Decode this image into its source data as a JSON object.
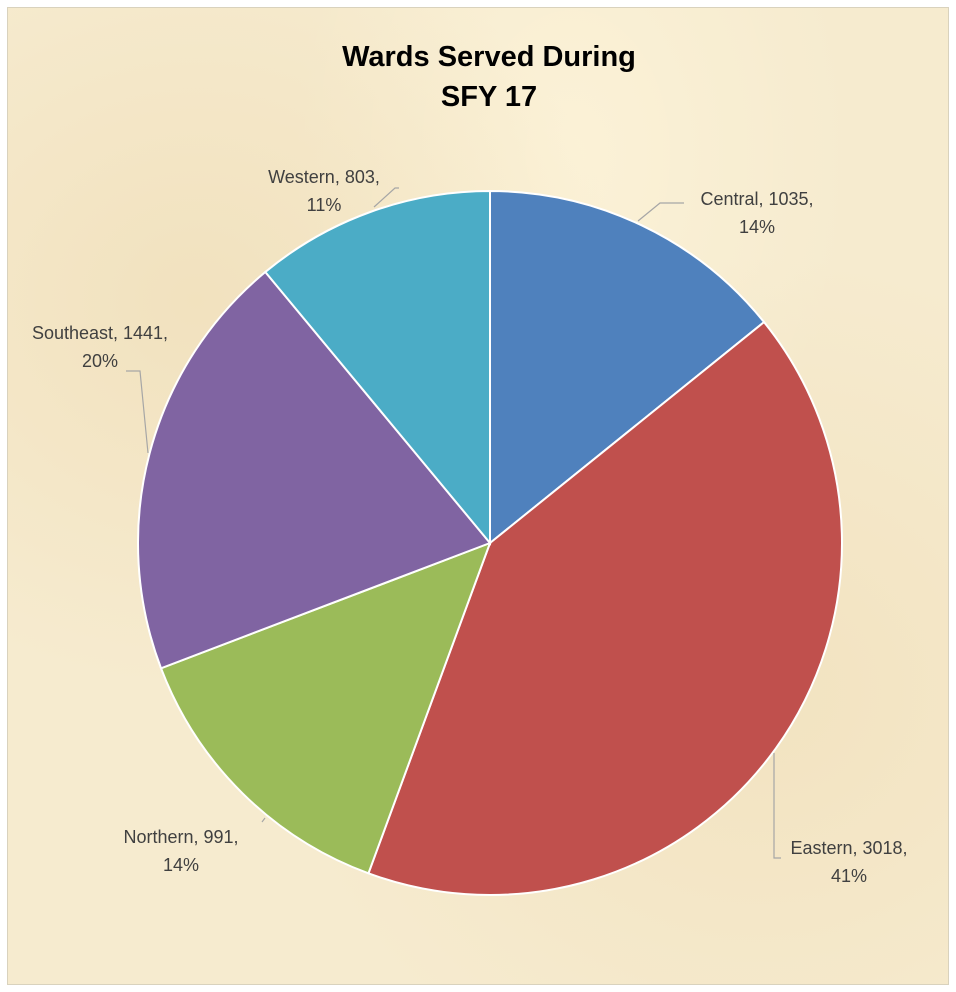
{
  "chart_data": {
    "type": "pie",
    "title_lines": [
      "Wards Served During",
      "SFY 17"
    ],
    "start_angle_deg": 0,
    "direction": "clockwise",
    "slices": [
      {
        "name": "Central",
        "value": 1035,
        "percent": "14%",
        "color": "#4f81bd",
        "label_line1": "Central, 1035,",
        "label_line2": "14%"
      },
      {
        "name": "Eastern",
        "value": 3018,
        "percent": "41%",
        "color": "#c0504d",
        "label_line1": "Eastern, 3018,",
        "label_line2": "41%"
      },
      {
        "name": "Northern",
        "value": 991,
        "percent": "14%",
        "color": "#9bbb59",
        "label_line1": "Northern, 991,",
        "label_line2": "14%"
      },
      {
        "name": "Southeast",
        "value": 1441,
        "percent": "20%",
        "color": "#8064a2",
        "label_line1": "Southeast, 1441,",
        "label_line2": "20%"
      },
      {
        "name": "Western",
        "value": 803,
        "percent": "11%",
        "color": "#4bacc6",
        "label_line1": "Western, 803,",
        "label_line2": "11%"
      }
    ]
  }
}
